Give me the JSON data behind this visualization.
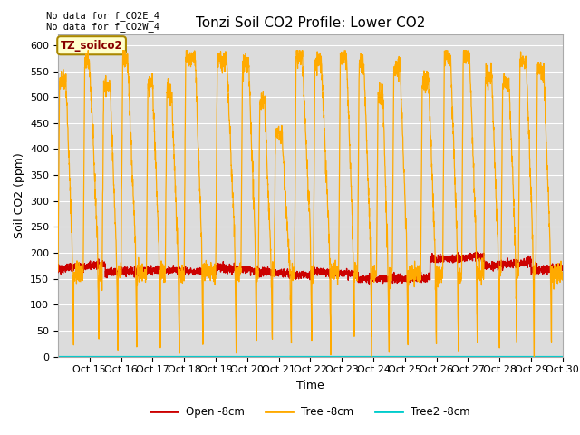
{
  "title": "Tonzi Soil CO2 Profile: Lower CO2",
  "ylabel": "Soil CO2 (ppm)",
  "xlabel": "Time",
  "ylim": [
    0,
    620
  ],
  "yticks": [
    0,
    50,
    100,
    150,
    200,
    250,
    300,
    350,
    400,
    450,
    500,
    550,
    600
  ],
  "annotation_text": "No data for f_CO2E_4\nNo data for f_CO2W_4",
  "legend_label_text": "TZ_soilco2",
  "legend_entries": [
    "Open -8cm",
    "Tree -8cm",
    "Tree2 -8cm"
  ],
  "open_color": "#cc0000",
  "tree_color": "#ffaa00",
  "tree2_color": "#00cccc",
  "background_color": "#dcdcdc",
  "fig_background": "#ffffff",
  "title_fontsize": 11,
  "axis_label_fontsize": 9,
  "tick_fontsize": 8,
  "orange_spikes": [
    [
      14.0,
      14.05,
      14.25,
      14.45,
      14.5,
      535
    ],
    [
      14.8,
      14.85,
      15.0,
      15.25,
      15.3,
      565
    ],
    [
      15.4,
      15.45,
      15.65,
      15.85,
      15.9,
      520
    ],
    [
      16.0,
      16.05,
      16.2,
      16.45,
      16.5,
      575
    ],
    [
      16.8,
      16.85,
      17.0,
      17.2,
      17.25,
      525
    ],
    [
      17.4,
      17.45,
      17.6,
      17.8,
      17.85,
      510
    ],
    [
      18.0,
      18.05,
      18.35,
      18.55,
      18.6,
      575
    ],
    [
      19.0,
      19.05,
      19.35,
      19.6,
      19.65,
      570
    ],
    [
      19.8,
      19.85,
      20.05,
      20.25,
      20.3,
      560
    ],
    [
      20.35,
      20.4,
      20.55,
      20.75,
      20.8,
      490
    ],
    [
      20.85,
      20.9,
      21.1,
      21.35,
      21.4,
      430
    ],
    [
      21.5,
      21.55,
      21.75,
      22.0,
      22.05,
      575
    ],
    [
      22.1,
      22.15,
      22.35,
      22.6,
      22.65,
      570
    ],
    [
      22.9,
      22.95,
      23.15,
      23.35,
      23.4,
      575
    ],
    [
      23.5,
      23.55,
      23.7,
      23.9,
      23.95,
      565
    ],
    [
      24.1,
      24.15,
      24.3,
      24.45,
      24.5,
      505
    ],
    [
      24.6,
      24.65,
      24.85,
      25.05,
      25.1,
      560
    ],
    [
      25.5,
      25.55,
      25.75,
      25.95,
      26.0,
      530
    ],
    [
      26.2,
      26.25,
      26.45,
      26.65,
      26.7,
      575
    ],
    [
      26.8,
      26.85,
      27.05,
      27.25,
      27.3,
      580
    ],
    [
      27.5,
      27.55,
      27.75,
      27.95,
      28.0,
      540
    ],
    [
      28.05,
      28.1,
      28.3,
      28.5,
      28.55,
      530
    ],
    [
      28.6,
      28.65,
      28.85,
      29.05,
      29.1,
      570
    ],
    [
      29.15,
      29.2,
      29.4,
      29.6,
      29.65,
      555
    ]
  ],
  "red_base": 162,
  "red_amplitude": 12,
  "red_period": 14
}
